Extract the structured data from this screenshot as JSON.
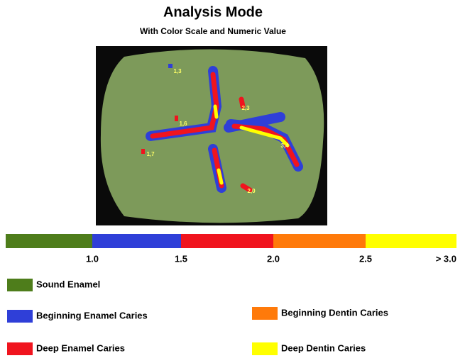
{
  "header": {
    "title": "Analysis Mode",
    "subtitle": "With Color Scale and Numeric Value"
  },
  "image": {
    "readings": [
      "1,3",
      "1,6",
      "1,7",
      "2,3",
      "3,4",
      "2,0"
    ]
  },
  "scale": {
    "colors": [
      "#4e7d1b",
      "#2f3fd8",
      "#f0141e",
      "#ff7a0a",
      "#ffff00"
    ],
    "ticks": [
      "1.0",
      "1.5",
      "2.0",
      "2.5",
      "> 3.0"
    ]
  },
  "legend": [
    {
      "label": "Sound Enamel",
      "color": "#4e7d1b"
    },
    {
      "label": "Beginning Enamel Caries",
      "color": "#2f3fd8"
    },
    {
      "label": "Beginning Dentin Caries",
      "color": "#ff7a0a"
    },
    {
      "label": "Deep Enamel Caries",
      "color": "#f0141e"
    },
    {
      "label": "Deep Dentin Caries",
      "color": "#ffff00"
    }
  ]
}
